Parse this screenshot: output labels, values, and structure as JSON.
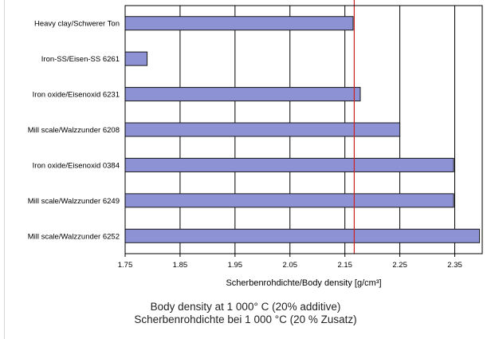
{
  "chart_data": {
    "type": "bar",
    "orientation": "horizontal",
    "categories": [
      "Heavy clay/Schwerer Ton",
      "Iron-SS/Eisen-SS 6261",
      "Iron oxide/Eisenoxid 6231",
      "Mill scale/Walzzunder 6208",
      "Iron oxide/Eisenoxid 0384",
      "Mill scale/Walzzunder 6249",
      "Mill scale/Walzzunder 6252"
    ],
    "values": [
      2.165,
      1.79,
      2.178,
      2.25,
      2.348,
      2.348,
      2.395
    ],
    "xlim": [
      1.75,
      2.4
    ],
    "ticks": [
      "1.75",
      "1.85",
      "1.95",
      "2.05",
      "2.15",
      "2.25",
      "2.35"
    ],
    "tick_values": [
      1.75,
      1.85,
      1.95,
      2.05,
      2.15,
      2.25,
      2.35
    ],
    "xlabel": "Scherbenrohdichte/Body density [g/cm³]",
    "reference_line": 2.167,
    "grid": "vertical",
    "bar_color": "#8c92d4",
    "bar_edge_color": "#1a1a1a",
    "reference_line_color": "#cc2222"
  },
  "caption": {
    "line1": "Body density at 1 000° C (20% additive)",
    "line2": "Scherbenrohdichte bei 1 000 °C (20 % Zusatz)"
  }
}
